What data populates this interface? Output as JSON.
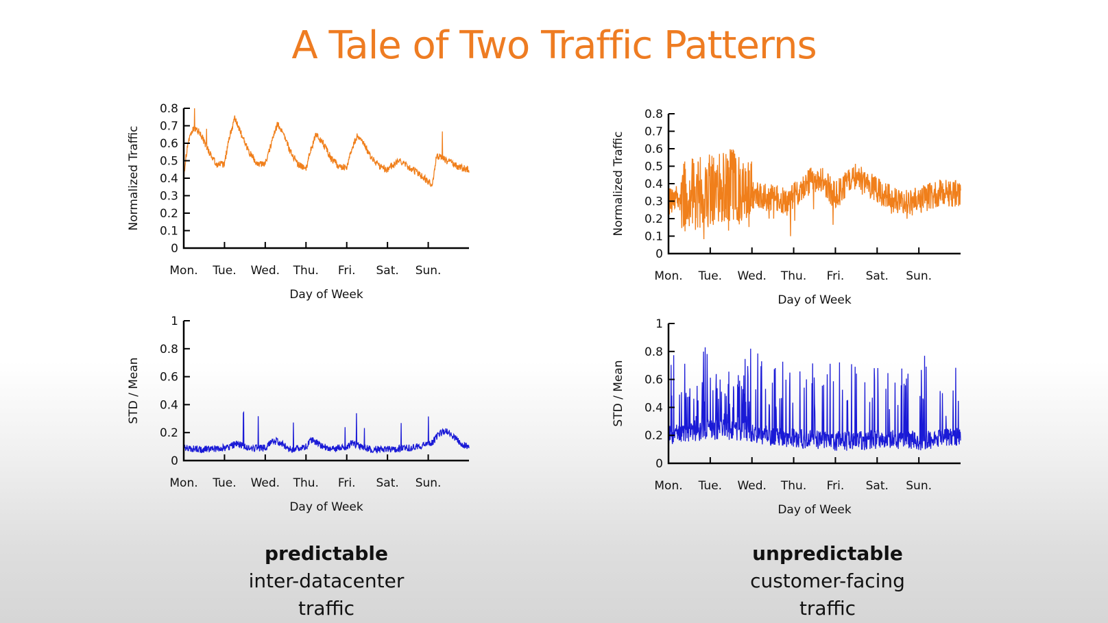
{
  "slide": {
    "title": "A Tale of Two Traffic Patterns",
    "captions": [
      {
        "bold": "predictable",
        "line1": "inter-datacenter",
        "line2": "traffic"
      },
      {
        "bold": "unpredictable",
        "line1": "customer-facing",
        "line2": "traffic"
      }
    ]
  },
  "chart_data": [
    {
      "type": "line",
      "xlabel": "Day of Week",
      "ylabel": "Normalized Traffic",
      "categories": [
        "Mon.",
        "Tue.",
        "Wed.",
        "Thu.",
        "Fri.",
        "Sat.",
        "Sun."
      ],
      "ylim": [
        0,
        0.8
      ],
      "yticks": [
        "0",
        "0.1",
        "0.2",
        "0.3",
        "0.4",
        "0.5",
        "0.6",
        "0.7",
        "0.8"
      ],
      "color": "#f07f1b",
      "series": [
        {
          "x": [
            0,
            0.1,
            0.25,
            0.4,
            0.6,
            0.8,
            1.0,
            1.1,
            1.25,
            1.4,
            1.6,
            1.8,
            2.0,
            2.15,
            2.3,
            2.45,
            2.6,
            2.8,
            3.0,
            3.1,
            3.25,
            3.4,
            3.6,
            3.8,
            4.0,
            4.1,
            4.25,
            4.4,
            4.6,
            4.8,
            5.0,
            5.3,
            5.6,
            5.9,
            6.0,
            6.1,
            6.2,
            6.4,
            6.6,
            6.8,
            7.0
          ],
          "y": [
            0.42,
            0.6,
            0.69,
            0.66,
            0.56,
            0.48,
            0.48,
            0.62,
            0.74,
            0.66,
            0.55,
            0.48,
            0.48,
            0.6,
            0.71,
            0.66,
            0.56,
            0.48,
            0.45,
            0.55,
            0.65,
            0.61,
            0.52,
            0.47,
            0.46,
            0.55,
            0.64,
            0.6,
            0.52,
            0.47,
            0.45,
            0.5,
            0.45,
            0.4,
            0.38,
            0.36,
            0.53,
            0.51,
            0.48,
            0.46,
            0.45
          ]
        }
      ]
    },
    {
      "type": "line",
      "xlabel": "Day of Week",
      "ylabel": "Normalized Traffic",
      "categories": [
        "Mon.",
        "Tue.",
        "Wed.",
        "Thu.",
        "Fri.",
        "Sat.",
        "Sun."
      ],
      "ylim": [
        0,
        0.8
      ],
      "yticks": [
        "0",
        "0.1",
        "0.2",
        "0.3",
        "0.4",
        "0.5",
        "0.6",
        "0.7",
        "0.8"
      ],
      "color": "#f07f1b",
      "series": [
        {
          "x": [
            0,
            0.3,
            0.6,
            1.0,
            1.5,
            1.9,
            2.1,
            2.4,
            2.7,
            2.9,
            3.2,
            3.5,
            3.7,
            4.0,
            4.2,
            4.5,
            4.8,
            5.1,
            5.4,
            5.7,
            6.0,
            6.3,
            6.6,
            6.9
          ],
          "y": [
            0.3,
            0.32,
            0.34,
            0.36,
            0.4,
            0.35,
            0.33,
            0.32,
            0.31,
            0.3,
            0.38,
            0.43,
            0.41,
            0.33,
            0.38,
            0.44,
            0.39,
            0.34,
            0.31,
            0.29,
            0.3,
            0.33,
            0.35,
            0.34
          ]
        }
      ]
    },
    {
      "type": "line",
      "xlabel": "Day of Week",
      "ylabel": "STD / Mean",
      "categories": [
        "Mon.",
        "Tue.",
        "Wed.",
        "Thu.",
        "Fri.",
        "Sat.",
        "Sun."
      ],
      "ylim": [
        0,
        1
      ],
      "yticks": [
        "0",
        "0.2",
        "0.4",
        "0.6",
        "0.8",
        "1"
      ],
      "color": "#1a1ad6",
      "series": [
        {
          "x": [
            0,
            0.5,
            1.0,
            1.1,
            1.3,
            1.6,
            2.0,
            2.15,
            2.3,
            2.6,
            3.0,
            3.15,
            3.3,
            3.6,
            4.0,
            4.15,
            4.3,
            4.6,
            5.0,
            5.5,
            6.0,
            6.1,
            6.3,
            6.5,
            6.8,
            7.0
          ],
          "y": [
            0.09,
            0.08,
            0.09,
            0.1,
            0.12,
            0.09,
            0.09,
            0.13,
            0.14,
            0.08,
            0.1,
            0.15,
            0.12,
            0.08,
            0.1,
            0.13,
            0.1,
            0.08,
            0.08,
            0.09,
            0.11,
            0.13,
            0.2,
            0.21,
            0.12,
            0.1
          ]
        }
      ]
    },
    {
      "type": "line",
      "xlabel": "Day of Week",
      "ylabel": "STD / Mean",
      "categories": [
        "Mon.",
        "Tue.",
        "Wed.",
        "Thu.",
        "Fri.",
        "Sat.",
        "Sun."
      ],
      "ylim": [
        0,
        1
      ],
      "yticks": [
        "0",
        "0.2",
        "0.4",
        "0.6",
        "0.8",
        "1"
      ],
      "color": "#1a1ad6",
      "series": [
        {
          "x": [
            0,
            0.5,
            1.0,
            1.5,
            2.0,
            2.5,
            3.0,
            3.5,
            4.0,
            4.5,
            5.0,
            5.5,
            6.0,
            6.5,
            7.0
          ],
          "y": [
            0.2,
            0.22,
            0.24,
            0.23,
            0.22,
            0.19,
            0.18,
            0.17,
            0.16,
            0.16,
            0.17,
            0.17,
            0.16,
            0.18,
            0.2
          ]
        }
      ]
    }
  ]
}
